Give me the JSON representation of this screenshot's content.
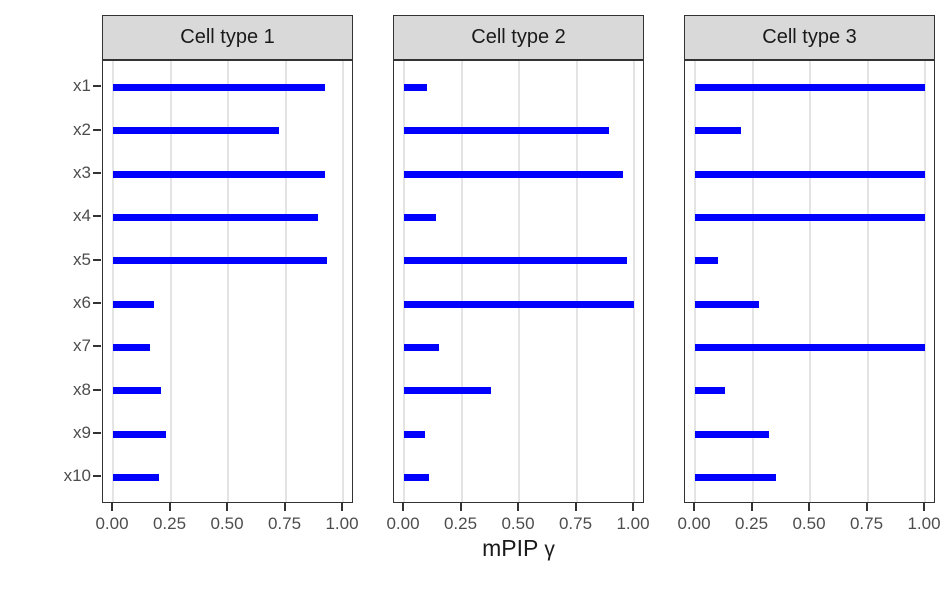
{
  "chart_data": {
    "type": "bar",
    "orientation": "horizontal",
    "xlabel": "mPIP γ",
    "xlabel_main": "mPIP",
    "xlabel_symbol": "γ",
    "categories": [
      "x1",
      "x2",
      "x3",
      "x4",
      "x5",
      "x6",
      "x7",
      "x8",
      "x9",
      "x10"
    ],
    "series": [
      {
        "name": "Cell type 1",
        "values": [
          0.92,
          0.72,
          0.92,
          0.89,
          0.93,
          0.18,
          0.16,
          0.21,
          0.23,
          0.2
        ]
      },
      {
        "name": "Cell type 2",
        "values": [
          0.1,
          0.89,
          0.95,
          0.14,
          0.97,
          1.0,
          0.15,
          0.38,
          0.09,
          0.11
        ]
      },
      {
        "name": "Cell type 3",
        "values": [
          1.0,
          0.2,
          1.0,
          1.0,
          0.1,
          0.28,
          1.0,
          0.13,
          0.32,
          0.35
        ]
      }
    ],
    "facet_titles": [
      "Cell type 1",
      "Cell type 2",
      "Cell type 3"
    ],
    "xlim": [
      0,
      1
    ],
    "x_ticks": [
      0,
      0.25,
      0.5,
      0.75,
      1
    ],
    "x_tick_labels": [
      "0.00",
      "0.25",
      "0.50",
      "0.75",
      "1.00"
    ],
    "grid": true,
    "legend": "none",
    "colors": {
      "bar": "#0000FF",
      "strip_bg": "#D9D9D9",
      "panel_border": "#333333",
      "grid": "#E4E4E4",
      "axis_text": "#4D4D4D",
      "title_text": "#1A1A1A",
      "tick": "#333333",
      "background": "#FFFFFF"
    }
  }
}
